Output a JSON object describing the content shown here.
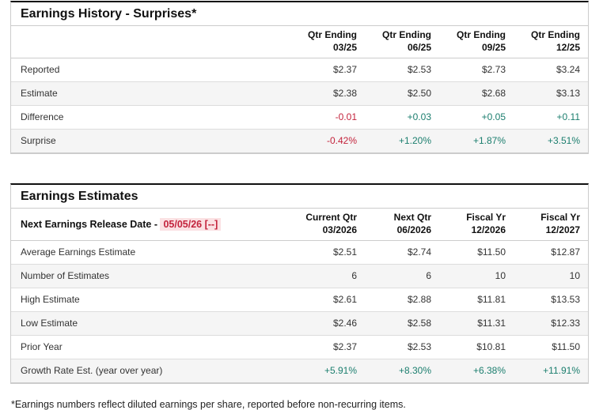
{
  "colors": {
    "positive": "#1b7e6e",
    "negative": "#c3233c",
    "negative_bg": "#fbe1e3",
    "row_alt_bg": "#f5f5f5",
    "top_border": "#111111"
  },
  "history_table": {
    "title": "Earnings History - Surprises*",
    "columns": [
      {
        "line1": "Qtr Ending",
        "line2": "03/25"
      },
      {
        "line1": "Qtr Ending",
        "line2": "06/25"
      },
      {
        "line1": "Qtr Ending",
        "line2": "09/25"
      },
      {
        "line1": "Qtr Ending",
        "line2": "12/25"
      }
    ],
    "rows": [
      {
        "label": "Reported",
        "values": [
          "$2.37",
          "$2.53",
          "$2.73",
          "$3.24"
        ],
        "tones": [
          "neutral",
          "neutral",
          "neutral",
          "neutral"
        ]
      },
      {
        "label": "Estimate",
        "values": [
          "$2.38",
          "$2.50",
          "$2.68",
          "$3.13"
        ],
        "tones": [
          "neutral",
          "neutral",
          "neutral",
          "neutral"
        ]
      },
      {
        "label": "Difference",
        "values": [
          "-0.01",
          "+0.03",
          "+0.05",
          "+0.11"
        ],
        "tones": [
          "negative",
          "positive",
          "positive",
          "positive"
        ]
      },
      {
        "label": "Surprise",
        "values": [
          "-0.42%",
          "+1.20%",
          "+1.87%",
          "+3.51%"
        ],
        "tones": [
          "negative",
          "positive",
          "positive",
          "positive"
        ]
      }
    ]
  },
  "estimates_table": {
    "title": "Earnings Estimates",
    "release_label": "Next Earnings Release Date - ",
    "release_date": "05/05/26 [--]",
    "columns": [
      {
        "line1": "Current Qtr",
        "line2": "03/2026"
      },
      {
        "line1": "Next Qtr",
        "line2": "06/2026"
      },
      {
        "line1": "Fiscal Yr",
        "line2": "12/2026"
      },
      {
        "line1": "Fiscal Yr",
        "line2": "12/2027"
      }
    ],
    "rows": [
      {
        "label": "Average Earnings Estimate",
        "values": [
          "$2.51",
          "$2.74",
          "$11.50",
          "$12.87"
        ],
        "tones": [
          "neutral",
          "neutral",
          "neutral",
          "neutral"
        ]
      },
      {
        "label": "Number of Estimates",
        "values": [
          "6",
          "6",
          "10",
          "10"
        ],
        "tones": [
          "neutral",
          "neutral",
          "neutral",
          "neutral"
        ]
      },
      {
        "label": "High Estimate",
        "values": [
          "$2.61",
          "$2.88",
          "$11.81",
          "$13.53"
        ],
        "tones": [
          "neutral",
          "neutral",
          "neutral",
          "neutral"
        ]
      },
      {
        "label": "Low Estimate",
        "values": [
          "$2.46",
          "$2.58",
          "$11.31",
          "$12.33"
        ],
        "tones": [
          "neutral",
          "neutral",
          "neutral",
          "neutral"
        ]
      },
      {
        "label": "Prior Year",
        "values": [
          "$2.37",
          "$2.53",
          "$10.81",
          "$11.50"
        ],
        "tones": [
          "neutral",
          "neutral",
          "neutral",
          "neutral"
        ]
      },
      {
        "label": "Growth Rate Est. (year over year)",
        "values": [
          "+5.91%",
          "+8.30%",
          "+6.38%",
          "+11.91%"
        ],
        "tones": [
          "positive",
          "positive",
          "positive",
          "positive"
        ]
      }
    ]
  },
  "page": {
    "footnote": "*Earnings numbers reflect diluted earnings per share, reported before non-recurring items."
  }
}
